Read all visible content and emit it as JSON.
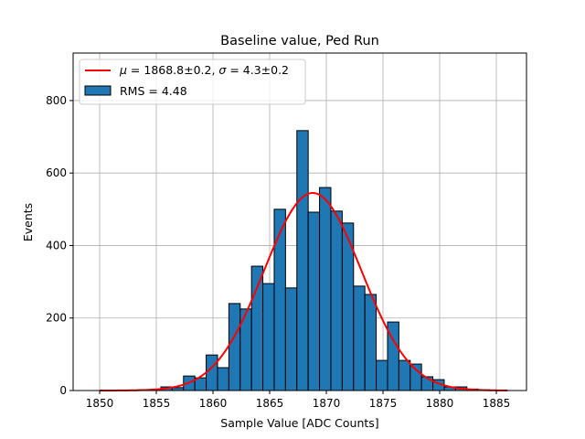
{
  "chart_data": {
    "type": "bar",
    "title": "Baseline value, Ped Run",
    "xlabel": "Sample Value [ADC Counts]",
    "ylabel": "Events",
    "xlim": [
      1847.66,
      1887.66
    ],
    "ylim": [
      0,
      931
    ],
    "xticks": [
      1850,
      1855,
      1860,
      1865,
      1870,
      1875,
      1880,
      1885
    ],
    "yticks": [
      0,
      200,
      400,
      600,
      800
    ],
    "grid": true,
    "legend_position": "top-left",
    "histogram": {
      "name": "RMS = 4.48",
      "bin_start": 1850.4,
      "bin_width": 1.0,
      "counts": [
        0,
        0,
        1,
        2,
        3,
        10,
        8,
        40,
        35,
        98,
        63,
        240,
        225,
        343,
        295,
        500,
        283,
        717,
        492,
        560,
        495,
        462,
        288,
        265,
        83,
        189,
        83,
        73,
        38,
        30,
        10,
        10,
        4,
        2,
        1,
        0
      ],
      "color": "#1f77b4"
    },
    "fit": {
      "name": "μ = 1868.8±0.2, σ = 4.3±0.2",
      "mu": 1868.8,
      "sigma": 4.3,
      "amplitude": 545,
      "range": [
        1850,
        1886
      ],
      "color": "#ff0000"
    }
  },
  "legend": {
    "fit_prefix_mu": "μ",
    "fit_text_1": " = 1868.8±0.2, ",
    "fit_prefix_sigma": "σ",
    "fit_text_2": " = 4.3±0.2",
    "hist_label": "RMS = 4.48"
  }
}
